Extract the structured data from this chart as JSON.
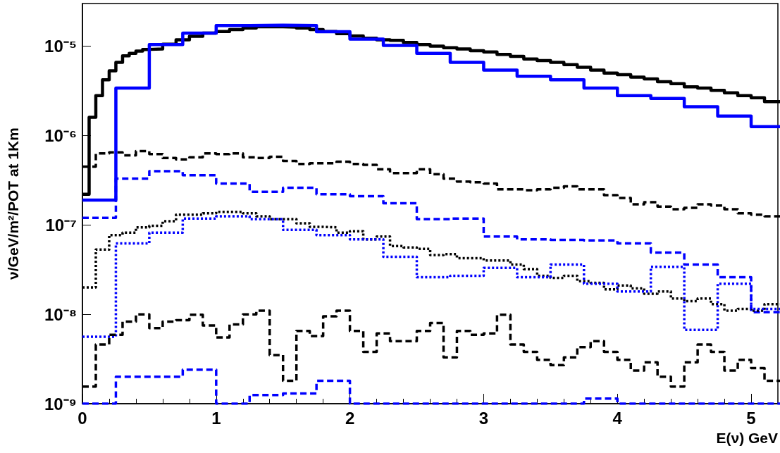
{
  "chart_data": {
    "type": "step",
    "xlabel": "E(ν) GeV",
    "ylabel": "ν/GeV/m²/POT at 1Km",
    "log": "y",
    "grid": false,
    "xlim": [
      0,
      5.2
    ],
    "xticks": [
      0,
      1,
      2,
      3,
      4,
      5
    ],
    "ylim": [
      1e-09,
      3e-05
    ],
    "yticks": [
      {
        "value": 1e-09,
        "label": "10⁻⁹"
      },
      {
        "value": 1e-08,
        "label": "10⁻⁸"
      },
      {
        "value": 1e-07,
        "label": "10⁻⁷"
      },
      {
        "value": 1e-06,
        "label": "10⁻⁶"
      },
      {
        "value": 1e-05,
        "label": "10⁻⁵"
      }
    ],
    "series": [
      {
        "color": "#000000",
        "line_style": "solid",
        "x": [
          0,
          0.05,
          0.1,
          0.15,
          0.2,
          0.25,
          0.3,
          0.35,
          0.4,
          0.45,
          0.5,
          0.6,
          0.7,
          0.8,
          0.9,
          1.0,
          1.1,
          1.2,
          1.3,
          1.4,
          1.5,
          1.6,
          1.7,
          1.8,
          1.9,
          2.0,
          2.1,
          2.2,
          2.3,
          2.4,
          2.5,
          2.6,
          2.7,
          2.8,
          2.9,
          3.0,
          3.1,
          3.2,
          3.3,
          3.4,
          3.5,
          3.6,
          3.7,
          3.8,
          3.9,
          4.0,
          4.1,
          4.2,
          4.3,
          4.4,
          4.5,
          4.6,
          4.7,
          4.8,
          4.9,
          5.0,
          5.1
        ],
        "values": [
          2.2e-07,
          1.6e-06,
          2.8e-06,
          4.2e-06,
          5.3e-06,
          6.6e-06,
          7.8e-06,
          8.3e-06,
          8.8e-06,
          9.2e-06,
          9.3e-06,
          1.05e-05,
          1.18e-05,
          1.29e-05,
          1.4e-05,
          1.46e-05,
          1.53e-05,
          1.6e-05,
          1.65e-05,
          1.65e-05,
          1.63e-05,
          1.6e-05,
          1.53e-05,
          1.46e-05,
          1.38e-05,
          1.3e-05,
          1.23e-05,
          1.18e-05,
          1.16e-05,
          1.1e-05,
          1.04e-05,
          1e-05,
          9.6e-06,
          9.3e-06,
          8.9e-06,
          8.6e-06,
          8.1e-06,
          7.7e-06,
          7.2e-06,
          6.9e-06,
          6.6e-06,
          6.2e-06,
          5.8e-06,
          5.4e-06,
          5e-06,
          4.8e-06,
          4.5e-06,
          4.3e-06,
          4e-06,
          3.8e-06,
          3.5e-06,
          3.4e-06,
          3.2e-06,
          3e-06,
          2.8e-06,
          2.65e-06,
          2.4e-06
        ]
      },
      {
        "color": "#0000ff",
        "line_style": "solid",
        "x": [
          0,
          0.25,
          0.5,
          0.75,
          1.0,
          1.25,
          1.5,
          1.75,
          2.0,
          2.25,
          2.5,
          2.75,
          3.0,
          3.25,
          3.5,
          3.75,
          4.0,
          4.25,
          4.5,
          4.75,
          5.0
        ],
        "values": [
          1.9e-07,
          3.4e-06,
          1.04e-05,
          1.4e-05,
          1.7e-05,
          1.72e-05,
          1.7e-05,
          1.45e-05,
          1.2e-05,
          1.02e-05,
          8.3e-06,
          6.6e-06,
          5.4e-06,
          4.6e-06,
          4.2e-06,
          3.4e-06,
          2.8e-06,
          2.6e-06,
          2.1e-06,
          1.65e-06,
          1.26e-06
        ]
      },
      {
        "color": "#000000",
        "line_style": "dashed",
        "x": [
          0,
          0.1,
          0.2,
          0.3,
          0.4,
          0.5,
          0.6,
          0.7,
          0.8,
          0.9,
          1.0,
          1.1,
          1.2,
          1.3,
          1.4,
          1.5,
          1.6,
          1.7,
          1.8,
          1.9,
          2.0,
          2.1,
          2.2,
          2.3,
          2.4,
          2.5,
          2.6,
          2.7,
          2.8,
          2.9,
          3.0,
          3.1,
          3.2,
          3.3,
          3.4,
          3.5,
          3.6,
          3.7,
          3.8,
          3.9,
          4.0,
          4.1,
          4.2,
          4.3,
          4.4,
          4.5,
          4.6,
          4.7,
          4.8,
          4.9,
          5.0,
          5.1
        ],
        "values": [
          4.5e-07,
          6.3e-07,
          6.5e-07,
          6e-07,
          6.7e-07,
          6.2e-07,
          5.6e-07,
          5.4e-07,
          5.7e-07,
          6.3e-07,
          6.2e-07,
          6.3e-07,
          5.7e-07,
          5.6e-07,
          5.8e-07,
          5.2e-07,
          4.8e-07,
          4.9e-07,
          4.9e-07,
          5.1e-07,
          4.8e-07,
          4.7e-07,
          4.2e-07,
          3.8e-07,
          3.8e-07,
          4.2e-07,
          3.7e-07,
          3.3e-07,
          3.05e-07,
          3e-07,
          2.9e-07,
          2.5e-07,
          2.5e-07,
          2.45e-07,
          2.5e-07,
          2.6e-07,
          2.7e-07,
          2.5e-07,
          2.5e-07,
          2.15e-07,
          2e-07,
          1.7e-07,
          1.8e-07,
          1.6e-07,
          1.5e-07,
          1.55e-07,
          1.7e-07,
          1.65e-07,
          1.5e-07,
          1.35e-07,
          1.3e-07,
          1.25e-07
        ]
      },
      {
        "color": "#0000ff",
        "line_style": "dashed",
        "x": [
          0,
          0.25,
          0.5,
          0.75,
          1.0,
          1.25,
          1.5,
          1.75,
          2.0,
          2.25,
          2.5,
          2.75,
          3.0,
          3.25,
          3.5,
          3.75,
          4.0,
          4.25,
          4.5,
          4.75,
          5.0
        ],
        "values": [
          1.2e-07,
          3.3e-07,
          4e-07,
          3.6e-07,
          2.9e-07,
          2.35e-07,
          2.6e-07,
          2.2e-07,
          2.1e-07,
          1.75e-07,
          1.16e-07,
          1.18e-07,
          7.4e-08,
          6.9e-08,
          6.8e-08,
          6.7e-08,
          6.2e-08,
          4.9e-08,
          3.6e-08,
          2.6e-08,
          1.06e-08
        ]
      },
      {
        "color": "#000000",
        "line_style": "dotted",
        "x": [
          0,
          0.1,
          0.2,
          0.3,
          0.4,
          0.5,
          0.6,
          0.7,
          0.8,
          0.9,
          1.0,
          1.1,
          1.2,
          1.3,
          1.4,
          1.5,
          1.6,
          1.7,
          1.8,
          1.9,
          2.0,
          2.1,
          2.2,
          2.3,
          2.4,
          2.5,
          2.6,
          2.7,
          2.8,
          2.9,
          3.0,
          3.1,
          3.2,
          3.3,
          3.4,
          3.5,
          3.6,
          3.7,
          3.8,
          3.9,
          4.0,
          4.1,
          4.2,
          4.3,
          4.4,
          4.5,
          4.6,
          4.7,
          4.8,
          4.9,
          5.0,
          5.1
        ],
        "values": [
          2e-08,
          5.3e-08,
          7.7e-08,
          8.2e-08,
          9.4e-08,
          9.8e-08,
          1.1e-07,
          1.3e-07,
          1.3e-07,
          1.35e-07,
          1.4e-07,
          1.4e-07,
          1.35e-07,
          1.25e-07,
          1.16e-07,
          1.16e-07,
          1.04e-07,
          9.5e-08,
          9.4e-08,
          8.2e-08,
          8.5e-08,
          6.9e-08,
          7.4e-08,
          5.8e-08,
          5.6e-08,
          5.4e-08,
          4.6e-08,
          4.7e-08,
          4.25e-08,
          4.25e-08,
          4e-08,
          4e-08,
          3.6e-08,
          3.2e-08,
          2.7e-08,
          2.55e-08,
          2.7e-08,
          2.35e-08,
          2.25e-08,
          1.9e-08,
          2.1e-08,
          1.95e-08,
          1.7e-08,
          1.8e-08,
          1.5e-08,
          1.4e-08,
          1.5e-08,
          1.3e-08,
          1.1e-08,
          1.15e-08,
          1.1e-08,
          1.3e-08
        ]
      },
      {
        "color": "#0000ff",
        "line_style": "dotted",
        "x": [
          0,
          0.25,
          0.5,
          0.75,
          1.0,
          1.25,
          1.5,
          1.75,
          2.0,
          2.25,
          2.5,
          2.75,
          3.0,
          3.25,
          3.5,
          3.75,
          4.0,
          4.25,
          4.5,
          4.75,
          5.0
        ],
        "values": [
          5.6e-09,
          6.2e-08,
          8.2e-08,
          1.18e-07,
          1.25e-07,
          1.16e-07,
          8.8e-08,
          7.7e-08,
          6.9e-08,
          4.4e-08,
          2.6e-08,
          2.7e-08,
          3.3e-08,
          2.6e-08,
          3.6e-08,
          2.2e-08,
          1.8e-08,
          3.4e-08,
          6.7e-09,
          2.2e-08,
          1.15e-08
        ]
      },
      {
        "color": "#000000",
        "line_style": "dashed",
        "x": [
          0,
          0.1,
          0.2,
          0.3,
          0.4,
          0.5,
          0.6,
          0.7,
          0.8,
          0.9,
          1.0,
          1.1,
          1.2,
          1.3,
          1.4,
          1.5,
          1.6,
          1.7,
          1.8,
          1.9,
          2.0,
          2.1,
          2.2,
          2.3,
          2.4,
          2.5,
          2.6,
          2.7,
          2.8,
          2.9,
          3.0,
          3.1,
          3.2,
          3.3,
          3.4,
          3.5,
          3.6,
          3.7,
          3.8,
          3.9,
          4.0,
          4.1,
          4.2,
          4.3,
          4.4,
          4.5,
          4.6,
          4.7,
          4.8,
          4.9,
          5.0,
          5.1
        ],
        "values": [
          1.55e-09,
          4.6e-09,
          5.9e-09,
          8.3e-09,
          1e-08,
          7e-09,
          8.3e-09,
          8.6e-09,
          9.9e-09,
          7.5e-09,
          5.5e-09,
          7.7e-09,
          1e-08,
          1.1e-08,
          3.5e-09,
          1.8e-09,
          6.5e-09,
          5.7e-09,
          9.5e-09,
          1.1e-08,
          6.5e-09,
          3.8e-09,
          6.1e-09,
          5e-09,
          5e-09,
          6.5e-09,
          8e-09,
          3.3e-09,
          6.5e-09,
          5.9e-09,
          6.1e-09,
          9.9e-09,
          4.6e-09,
          3.8e-09,
          3.1e-09,
          2.7e-09,
          3.3e-09,
          4.3e-09,
          5e-09,
          3.8e-09,
          3.1e-09,
          2.35e-09,
          2.9e-09,
          2e-09,
          1.55e-09,
          2.9e-09,
          4.6e-09,
          3.8e-09,
          2.35e-09,
          3.1e-09,
          2.5e-09,
          1.8e-09
        ]
      },
      {
        "color": "#0000ff",
        "line_style": "dashed",
        "x": [
          0,
          0.25,
          0.5,
          0.75,
          1.0,
          1.25,
          1.5,
          1.75,
          2.0,
          2.25,
          2.5,
          2.75,
          3.0,
          3.25,
          3.5,
          3.75,
          4.0,
          4.25,
          4.5,
          4.75,
          5.0
        ],
        "values": [
          1e-09,
          2e-09,
          2e-09,
          2.4e-09,
          1e-09,
          1.25e-09,
          1.3e-09,
          1.8e-09,
          1e-09,
          1e-09,
          1e-09,
          1e-09,
          1e-09,
          1e-09,
          1e-09,
          1.14e-09,
          1e-09,
          1e-09,
          1e-09,
          1e-09,
          1e-09
        ]
      }
    ]
  }
}
